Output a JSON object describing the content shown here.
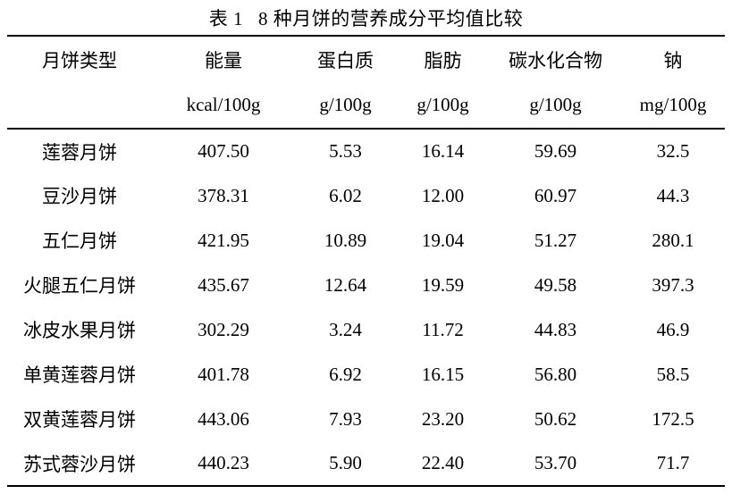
{
  "document": {
    "caption": {
      "label": "表 1",
      "text": "8 种月饼的营养成分平均值比较"
    },
    "table": {
      "columns": [
        {
          "label": "月饼类型",
          "unit": ""
        },
        {
          "label": "能量",
          "unit": "kcal/100g"
        },
        {
          "label": "蛋白质",
          "unit": "g/100g"
        },
        {
          "label": "脂肪",
          "unit": "g/100g"
        },
        {
          "label": "碳水化合物",
          "unit": "g/100g"
        },
        {
          "label": "钠",
          "unit": "mg/100g"
        }
      ],
      "rows": [
        {
          "name": "莲蓉月饼",
          "values": [
            "407.50",
            "5.53",
            "16.14",
            "59.69",
            "32.5"
          ]
        },
        {
          "name": "豆沙月饼",
          "values": [
            "378.31",
            "6.02",
            "12.00",
            "60.97",
            "44.3"
          ]
        },
        {
          "name": "五仁月饼",
          "values": [
            "421.95",
            "10.89",
            "19.04",
            "51.27",
            "280.1"
          ]
        },
        {
          "name": "火腿五仁月饼",
          "values": [
            "435.67",
            "12.64",
            "19.59",
            "49.58",
            "397.3"
          ]
        },
        {
          "name": "冰皮水果月饼",
          "values": [
            "302.29",
            "3.24",
            "11.72",
            "44.83",
            "46.9"
          ]
        },
        {
          "name": "单黄莲蓉月饼",
          "values": [
            "401.78",
            "6.92",
            "16.15",
            "56.80",
            "58.5"
          ]
        },
        {
          "name": "双黄莲蓉月饼",
          "values": [
            "443.06",
            "7.93",
            "23.20",
            "50.62",
            "172.5"
          ]
        },
        {
          "name": "苏式蓉沙月饼",
          "values": [
            "440.23",
            "5.90",
            "22.40",
            "53.70",
            "71.7"
          ]
        }
      ]
    }
  }
}
